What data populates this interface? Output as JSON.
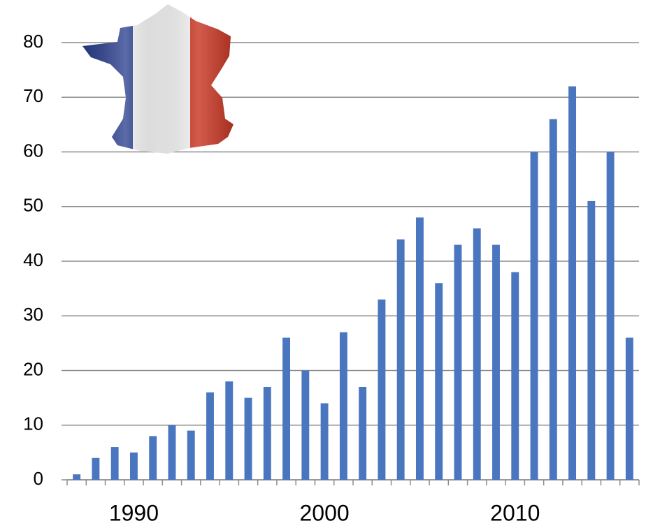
{
  "chart_data": {
    "type": "bar",
    "categories": [
      null,
      null,
      null,
      "1990",
      null,
      null,
      null,
      null,
      null,
      null,
      null,
      null,
      null,
      "2000",
      null,
      null,
      null,
      null,
      null,
      null,
      null,
      null,
      null,
      "2010",
      null,
      null,
      null,
      null,
      null,
      null
    ],
    "values": [
      1,
      4,
      6,
      5,
      8,
      10,
      9,
      16,
      18,
      15,
      17,
      26,
      20,
      14,
      27,
      17,
      33,
      44,
      48,
      36,
      43,
      46,
      43,
      38,
      60,
      66,
      72,
      51,
      60,
      26
    ],
    "color": "#4a76c0",
    "ylim": [
      0,
      80
    ],
    "yticks": [
      0,
      10,
      20,
      30,
      40,
      50,
      60,
      70,
      80
    ],
    "grid": true
  }
}
